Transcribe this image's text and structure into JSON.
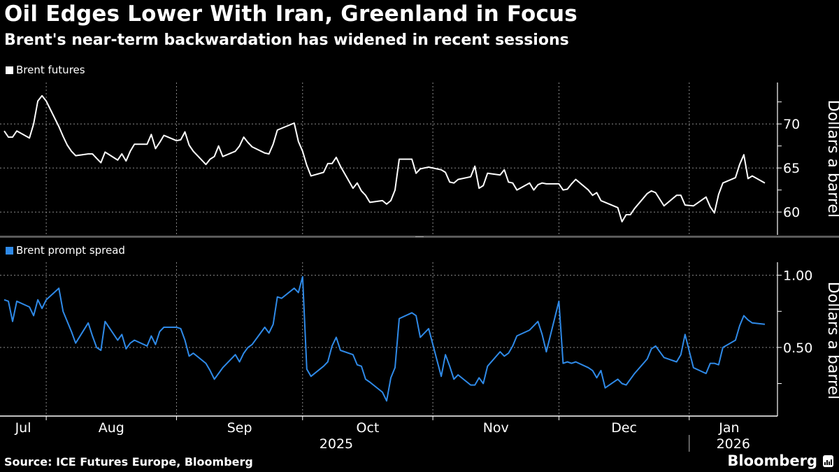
{
  "header": {
    "title": "Oil Edges Lower With Iran, Greenland in Focus",
    "subtitle": "Brent's near-term backwardation has widened in recent sessions"
  },
  "footer": {
    "source": "Source: ICE Futures Europe, Bloomberg",
    "brand": "Bloomberg"
  },
  "chart_data": {
    "type": "line",
    "x_type": "date",
    "xlim": [
      "2025-07-21",
      "2026-01-22"
    ],
    "x_tick_labels": [
      "Jul",
      "Aug",
      "Sep",
      "Oct",
      "Nov",
      "Dec",
      "Jan"
    ],
    "x_year_labels": [
      "2025",
      "2026"
    ],
    "grid": true,
    "x": [
      "2025-07-22",
      "2025-07-23",
      "2025-07-24",
      "2025-07-25",
      "2025-07-28",
      "2025-07-29",
      "2025-07-30",
      "2025-07-31",
      "2025-08-01",
      "2025-08-04",
      "2025-08-05",
      "2025-08-06",
      "2025-08-07",
      "2025-08-08",
      "2025-08-11",
      "2025-08-12",
      "2025-08-13",
      "2025-08-14",
      "2025-08-15",
      "2025-08-18",
      "2025-08-19",
      "2025-08-20",
      "2025-08-21",
      "2025-08-22",
      "2025-08-25",
      "2025-08-26",
      "2025-08-27",
      "2025-08-28",
      "2025-08-29",
      "2025-09-01",
      "2025-09-02",
      "2025-09-03",
      "2025-09-04",
      "2025-09-05",
      "2025-09-08",
      "2025-09-09",
      "2025-09-10",
      "2025-09-11",
      "2025-09-12",
      "2025-09-15",
      "2025-09-16",
      "2025-09-17",
      "2025-09-18",
      "2025-09-19",
      "2025-09-22",
      "2025-09-23",
      "2025-09-24",
      "2025-09-25",
      "2025-09-26",
      "2025-09-29",
      "2025-09-30",
      "2025-10-01",
      "2025-10-02",
      "2025-10-03",
      "2025-10-06",
      "2025-10-07",
      "2025-10-08",
      "2025-10-09",
      "2025-10-10",
      "2025-10-13",
      "2025-10-14",
      "2025-10-15",
      "2025-10-16",
      "2025-10-17",
      "2025-10-20",
      "2025-10-21",
      "2025-10-22",
      "2025-10-23",
      "2025-10-24",
      "2025-10-27",
      "2025-10-28",
      "2025-10-29",
      "2025-10-30",
      "2025-10-31",
      "2025-11-03",
      "2025-11-04",
      "2025-11-05",
      "2025-11-06",
      "2025-11-07",
      "2025-11-10",
      "2025-11-11",
      "2025-11-12",
      "2025-11-13",
      "2025-11-14",
      "2025-11-17",
      "2025-11-18",
      "2025-11-19",
      "2025-11-20",
      "2025-11-21",
      "2025-11-24",
      "2025-11-25",
      "2025-11-26",
      "2025-11-27",
      "2025-11-28",
      "2025-12-01",
      "2025-12-02",
      "2025-12-03",
      "2025-12-04",
      "2025-12-05",
      "2025-12-08",
      "2025-12-09",
      "2025-12-10",
      "2025-12-11",
      "2025-12-12",
      "2025-12-15",
      "2025-12-16",
      "2025-12-17",
      "2025-12-18",
      "2025-12-19",
      "2025-12-22",
      "2025-12-23",
      "2025-12-24",
      "2025-12-26",
      "2025-12-29",
      "2025-12-30",
      "2025-12-31",
      "2026-01-02",
      "2026-01-05",
      "2026-01-06",
      "2026-01-07",
      "2026-01-08",
      "2026-01-09",
      "2026-01-12",
      "2026-01-13",
      "2026-01-14",
      "2026-01-15",
      "2026-01-16",
      "2026-01-19"
    ],
    "panels": [
      {
        "legend": "Brent futures",
        "color": "#ffffff",
        "ylabel": "Dollars a barrel",
        "ylim": [
          57.4,
          74.7
        ],
        "y_ticks": [
          60,
          65,
          70
        ],
        "y_tick_labels": [
          "60",
          "65",
          "70"
        ],
        "y_minor_ticks": [
          62.5,
          67.5,
          72.5
        ],
        "values": [
          69.2,
          68.5,
          68.5,
          69.2,
          68.4,
          70.0,
          72.6,
          73.2,
          72.6,
          69.7,
          68.6,
          67.6,
          66.9,
          66.4,
          66.6,
          66.6,
          66.1,
          65.6,
          66.8,
          65.9,
          66.6,
          65.8,
          66.9,
          67.7,
          67.7,
          68.8,
          67.2,
          67.9,
          68.7,
          68.1,
          68.2,
          69.1,
          67.6,
          66.9,
          65.4,
          66.0,
          66.3,
          67.5,
          66.3,
          66.9,
          67.5,
          68.5,
          67.9,
          67.4,
          66.7,
          66.6,
          67.7,
          69.3,
          69.5,
          70.1,
          68.0,
          66.9,
          65.3,
          64.1,
          64.5,
          65.5,
          65.5,
          66.2,
          65.2,
          62.7,
          63.3,
          62.4,
          61.9,
          61.1,
          61.3,
          60.9,
          61.3,
          62.5,
          66.0,
          66.0,
          64.4,
          64.9,
          65.0,
          65.1,
          64.8,
          64.5,
          63.4,
          63.3,
          63.7,
          64.0,
          65.2,
          62.7,
          63.0,
          64.4,
          64.2,
          64.8,
          63.4,
          63.3,
          62.5,
          63.3,
          62.5,
          63.1,
          63.3,
          63.2,
          63.2,
          62.5,
          62.6,
          63.2,
          63.7,
          62.5,
          61.9,
          62.2,
          61.3,
          61.1,
          60.5,
          58.9,
          59.7,
          59.7,
          60.4,
          62.1,
          62.4,
          62.2,
          60.7,
          61.9,
          61.9,
          60.8,
          60.7,
          61.7,
          60.6,
          59.9,
          62.0,
          63.3,
          63.9,
          65.4,
          66.5,
          63.8,
          64.1,
          63.3
        ]
      },
      {
        "legend": "Brent prompt spread",
        "color": "#2f8ae8",
        "ylabel": "Dollars a barrel",
        "ylim": [
          0.025,
          1.09
        ],
        "y_ticks": [
          0.5,
          1.0
        ],
        "y_tick_labels": [
          "0.50",
          "1.00"
        ],
        "y_minor_ticks": [
          0.25,
          0.75
        ],
        "values": [
          0.83,
          0.82,
          0.68,
          0.82,
          0.78,
          0.72,
          0.83,
          0.77,
          0.83,
          0.91,
          0.75,
          0.68,
          0.61,
          0.53,
          0.67,
          0.58,
          0.5,
          0.48,
          0.68,
          0.55,
          0.59,
          0.49,
          0.53,
          0.55,
          0.51,
          0.58,
          0.52,
          0.61,
          0.64,
          0.64,
          0.63,
          0.55,
          0.44,
          0.46,
          0.39,
          0.34,
          0.28,
          0.32,
          0.36,
          0.45,
          0.4,
          0.46,
          0.5,
          0.52,
          0.64,
          0.6,
          0.66,
          0.85,
          0.84,
          0.91,
          0.88,
          0.99,
          0.35,
          0.3,
          0.37,
          0.4,
          0.51,
          0.57,
          0.48,
          0.45,
          0.38,
          0.37,
          0.28,
          0.26,
          0.19,
          0.13,
          0.29,
          0.36,
          0.7,
          0.74,
          0.72,
          0.57,
          0.6,
          0.63,
          0.3,
          0.45,
          0.37,
          0.28,
          0.31,
          0.24,
          0.24,
          0.29,
          0.25,
          0.37,
          0.47,
          0.44,
          0.46,
          0.51,
          0.58,
          0.62,
          0.65,
          0.68,
          0.59,
          0.47,
          0.82,
          0.39,
          0.4,
          0.39,
          0.4,
          0.36,
          0.34,
          0.29,
          0.34,
          0.22,
          0.28,
          0.25,
          0.24,
          0.28,
          0.32,
          0.42,
          0.49,
          0.51,
          0.43,
          0.4,
          0.45,
          0.59,
          0.36,
          0.32,
          0.39,
          0.39,
          0.38,
          0.5,
          0.55,
          0.65,
          0.72,
          0.69,
          0.67,
          0.66
        ]
      }
    ]
  }
}
